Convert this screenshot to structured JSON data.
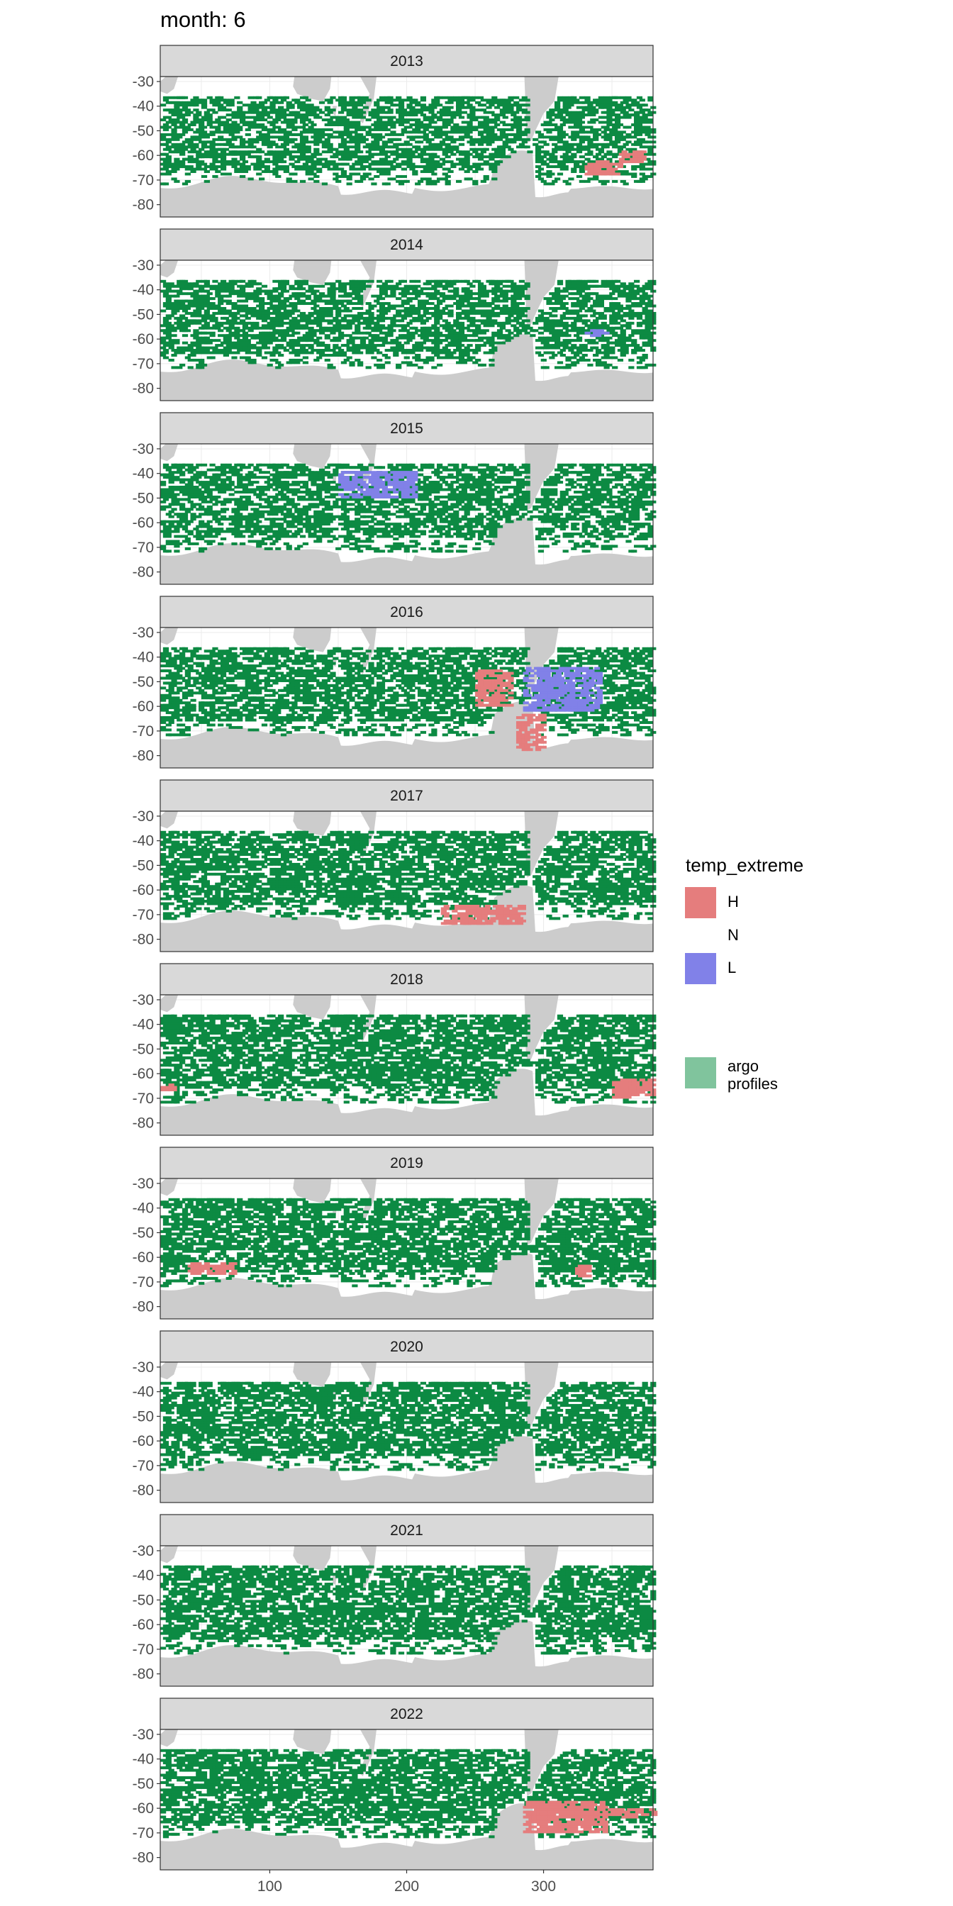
{
  "figure": {
    "title": "month: 6"
  },
  "legend": {
    "title": "temp_extreme",
    "items": [
      {
        "label": "H",
        "color": "#e57d7d"
      },
      {
        "label": "N",
        "color": "none"
      },
      {
        "label": "L",
        "color": "#8181e8"
      }
    ],
    "argo": {
      "label_line1": "argo",
      "label_line2": "profiles",
      "color": "#80c49d"
    }
  },
  "chart_data": {
    "type": "heatmap",
    "facet_variable": "year",
    "panels": [
      "2013",
      "2014",
      "2015",
      "2016",
      "2017",
      "2018",
      "2019",
      "2020",
      "2021",
      "2022"
    ],
    "x_ticks": [
      100,
      200,
      300
    ],
    "y_ticks": [
      -30,
      -40,
      -50,
      -60,
      -70,
      -80
    ],
    "xlim": [
      20,
      380
    ],
    "ylim": [
      -85,
      -28
    ],
    "colors": {
      "argo": "#0c8a43",
      "H": "#e57d7d",
      "L": "#8181e8",
      "land": "#cccccc",
      "strip": "#d9d9d9",
      "grid": "#ebebeb"
    },
    "extremes": [
      {
        "panel": "2013",
        "type": "H",
        "x": [
          330,
          355
        ],
        "y": [
          -62,
          -68
        ]
      },
      {
        "panel": "2013",
        "type": "H",
        "x": [
          355,
          372
        ],
        "y": [
          -58,
          -63
        ]
      },
      {
        "panel": "2014",
        "type": "L",
        "x": [
          330,
          345
        ],
        "y": [
          -56,
          -59
        ]
      },
      {
        "panel": "2015",
        "type": "L",
        "x": [
          150,
          205
        ],
        "y": [
          -39,
          -50
        ]
      },
      {
        "panel": "2016",
        "type": "H",
        "x": [
          250,
          275
        ],
        "y": [
          -45,
          -60
        ]
      },
      {
        "panel": "2016",
        "type": "L",
        "x": [
          285,
          340
        ],
        "y": [
          -44,
          -62
        ]
      },
      {
        "panel": "2016",
        "type": "H",
        "x": [
          280,
          300
        ],
        "y": [
          -63,
          -78
        ]
      },
      {
        "panel": "2017",
        "type": "H",
        "x": [
          225,
          285
        ],
        "y": [
          -66,
          -74
        ]
      },
      {
        "panel": "2018",
        "type": "H",
        "x": [
          350,
          380
        ],
        "y": [
          -62,
          -70
        ]
      },
      {
        "panel": "2018",
        "type": "H",
        "x": [
          20,
          30
        ],
        "y": [
          -64,
          -67
        ]
      },
      {
        "panel": "2019",
        "type": "H",
        "x": [
          40,
          75
        ],
        "y": [
          -62,
          -67
        ]
      },
      {
        "panel": "2019",
        "type": "H",
        "x": [
          323,
          333
        ],
        "y": [
          -63,
          -68
        ]
      },
      {
        "panel": "2022",
        "type": "H",
        "x": [
          285,
          345
        ],
        "y": [
          -57,
          -70
        ]
      },
      {
        "panel": "2022",
        "type": "H",
        "x": [
          345,
          380
        ],
        "y": [
          -60,
          -64
        ]
      }
    ]
  }
}
